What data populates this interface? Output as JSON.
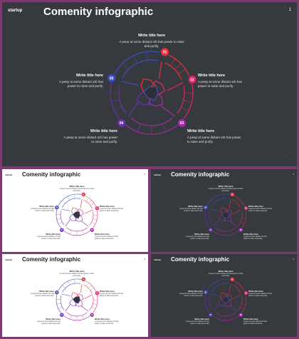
{
  "brand": "startup",
  "title": "Comenity infographic",
  "page_number": "1",
  "items": [
    {
      "num": "01",
      "title": "Write title here",
      "desc": "A peep at some distant orb has power to raise and purify.",
      "color": "#e8323c"
    },
    {
      "num": "02",
      "title": "Write title here",
      "desc": "A peep at some distant orb has power to raise and purify.",
      "color": "#e0246a"
    },
    {
      "num": "03",
      "title": "Write title here",
      "desc": "A peep at some distant orb has power to raise and purify.",
      "color": "#a52aa6"
    },
    {
      "num": "04",
      "title": "Write title here",
      "desc": "A peep at some distant orb has power to raise and purify.",
      "color": "#6a2fb0"
    },
    {
      "num": "05",
      "title": "Write title here",
      "desc": "A peep at some distant orb has power to raise and purify.",
      "color": "#3d4fc0"
    }
  ]
}
